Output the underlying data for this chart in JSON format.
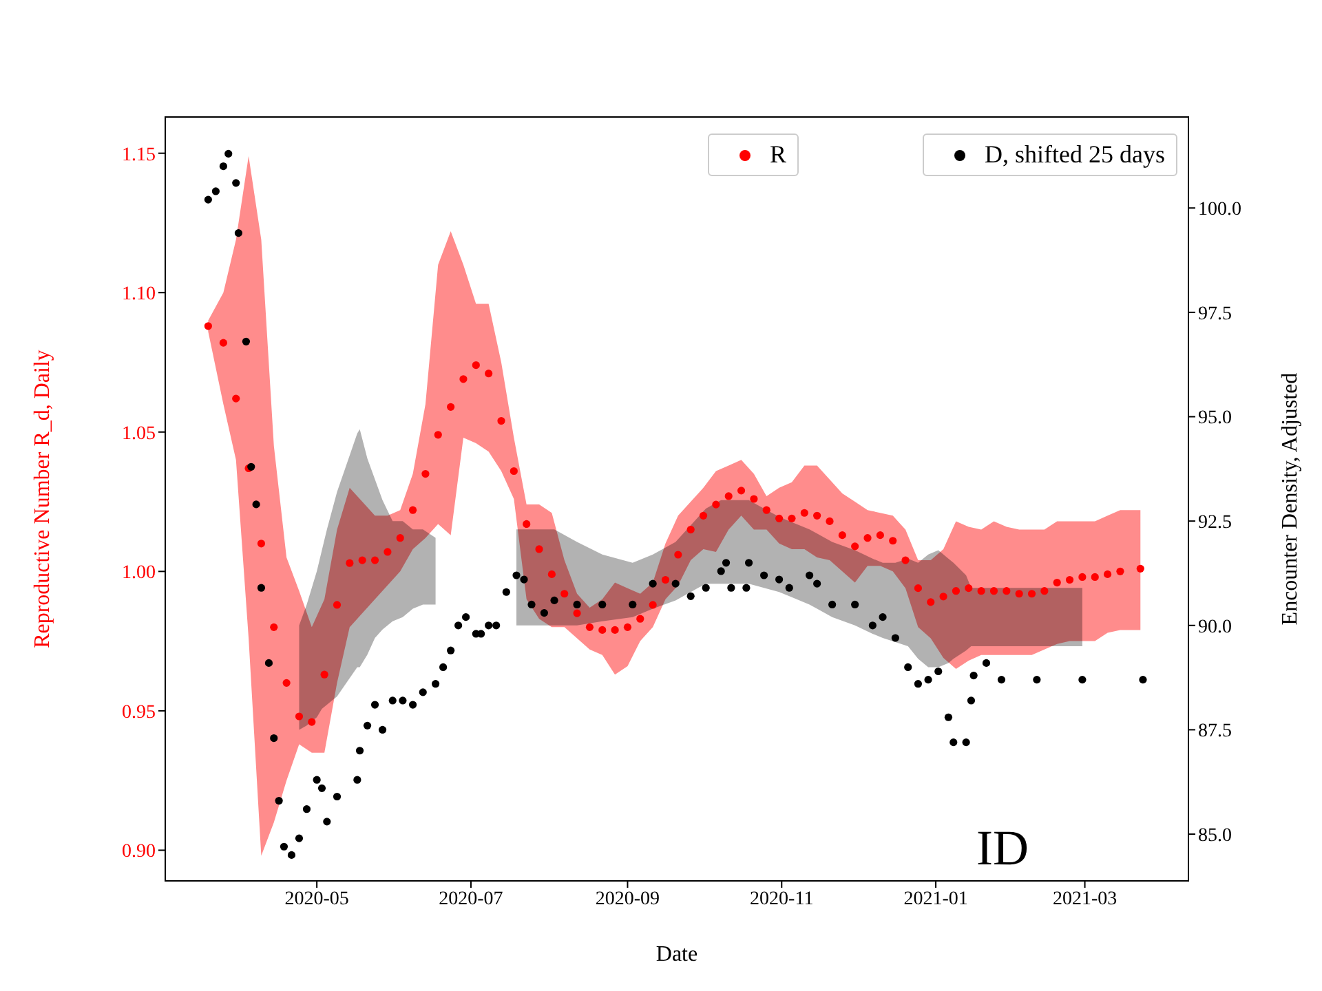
{
  "chart_data": {
    "type": "scatter",
    "xlabel": "Date",
    "ylabel": "Reproductive Number R_d, Daily",
    "y2label": "Encounter Density, Adjusted",
    "annotations": [
      "ID"
    ],
    "legend": "top right",
    "marker": "circle",
    "grid": false,
    "xlim": [
      "2020-03-02",
      "2021-04-11"
    ],
    "xticks": [
      "2020-05",
      "2020-07",
      "2020-09",
      "2020-11",
      "2021-01",
      "2021-03"
    ],
    "ylim": [
      0.889,
      1.163
    ],
    "yticks": [
      {
        "value": 0.9,
        "label": "0.90"
      },
      {
        "value": 0.95,
        "label": "0.95"
      },
      {
        "value": 1.0,
        "label": "1.00"
      },
      {
        "value": 1.05,
        "label": "1.05"
      },
      {
        "value": 1.1,
        "label": "1.10"
      },
      {
        "value": 1.15,
        "label": "1.15"
      }
    ],
    "y2lim": [
      83.88,
      102.18
    ],
    "y2ticks": [
      {
        "value": 85,
        "label": "85.0"
      },
      {
        "value": 87.5,
        "label": "87.5"
      },
      {
        "value": 90,
        "label": "90.0"
      },
      {
        "value": 92.5,
        "label": "92.5"
      },
      {
        "value": 95,
        "label": "95.0"
      },
      {
        "value": 97.5,
        "label": "97.5"
      },
      {
        "value": 100,
        "label": "100.0"
      }
    ],
    "series": [
      {
        "name": "R",
        "color": "#ff0000",
        "x": [
          "2020-03-19",
          "2020-03-25",
          "2020-03-30",
          "2020-04-04",
          "2020-04-09",
          "2020-04-14",
          "2020-04-19",
          "2020-04-24",
          "2020-04-29",
          "2020-05-04",
          "2020-05-09",
          "2020-05-14",
          "2020-05-19",
          "2020-05-24",
          "2020-05-29",
          "2020-06-03",
          "2020-06-08",
          "2020-06-13",
          "2020-06-18",
          "2020-06-23",
          "2020-06-28",
          "2020-07-03",
          "2020-07-08",
          "2020-07-13",
          "2020-07-18",
          "2020-07-23",
          "2020-07-28",
          "2020-08-02",
          "2020-08-07",
          "2020-08-12",
          "2020-08-17",
          "2020-08-22",
          "2020-08-27",
          "2020-09-01",
          "2020-09-06",
          "2020-09-11",
          "2020-09-16",
          "2020-09-21",
          "2020-09-26",
          "2020-10-01",
          "2020-10-06",
          "2020-10-11",
          "2020-10-16",
          "2020-10-21",
          "2020-10-26",
          "2020-10-31",
          "2020-11-05",
          "2020-11-10",
          "2020-11-15",
          "2020-11-20",
          "2020-11-25",
          "2020-11-30",
          "2020-12-05",
          "2020-12-10",
          "2020-12-15",
          "2020-12-20",
          "2020-12-25",
          "2020-12-30",
          "2021-01-04",
          "2021-01-09",
          "2021-01-14",
          "2021-01-19",
          "2021-01-24",
          "2021-01-29",
          "2021-02-03",
          "2021-02-08",
          "2021-02-13",
          "2021-02-18",
          "2021-02-23",
          "2021-02-28",
          "2021-03-05",
          "2021-03-10",
          "2021-03-15",
          "2021-03-23"
        ],
        "values": [
          1.088,
          1.082,
          1.062,
          1.037,
          1.01,
          0.98,
          0.96,
          0.948,
          0.946,
          0.963,
          0.988,
          1.003,
          1.004,
          1.004,
          1.007,
          1.012,
          1.022,
          1.035,
          1.049,
          1.059,
          1.069,
          1.074,
          1.071,
          1.054,
          1.036,
          1.017,
          1.008,
          0.999,
          0.992,
          0.985,
          0.98,
          0.979,
          0.979,
          0.98,
          0.983,
          0.988,
          0.997,
          1.006,
          1.015,
          1.02,
          1.024,
          1.027,
          1.029,
          1.026,
          1.022,
          1.019,
          1.019,
          1.021,
          1.02,
          1.018,
          1.013,
          1.009,
          1.012,
          1.013,
          1.011,
          1.004,
          0.994,
          0.989,
          0.991,
          0.993,
          0.994,
          0.993,
          0.993,
          0.993,
          0.992,
          0.992,
          0.993,
          0.996,
          0.997,
          0.998,
          0.998,
          0.999,
          1.0,
          1.001
        ],
        "upper": [
          1.09,
          1.1,
          1.119,
          1.149,
          1.119,
          1.045,
          1.005,
          0.993,
          0.98,
          0.99,
          1.015,
          1.03,
          1.025,
          1.02,
          1.02,
          1.022,
          1.035,
          1.06,
          1.11,
          1.122,
          1.11,
          1.096,
          1.096,
          1.075,
          1.048,
          1.024,
          1.024,
          1.021,
          1.004,
          0.992,
          0.987,
          0.99,
          0.996,
          0.994,
          0.992,
          0.996,
          1.01,
          1.02,
          1.025,
          1.03,
          1.036,
          1.038,
          1.04,
          1.035,
          1.027,
          1.03,
          1.032,
          1.038,
          1.038,
          1.033,
          1.028,
          1.025,
          1.022,
          1.021,
          1.02,
          1.015,
          1.004,
          1.004,
          1.008,
          1.018,
          1.016,
          1.015,
          1.018,
          1.016,
          1.015,
          1.015,
          1.015,
          1.018,
          1.018,
          1.018,
          1.018,
          1.02,
          1.022,
          1.022
        ],
        "lower": [
          1.086,
          1.06,
          1.04,
          0.976,
          0.898,
          0.91,
          0.925,
          0.938,
          0.935,
          0.935,
          0.96,
          0.98,
          0.985,
          0.99,
          0.995,
          1.0,
          1.008,
          1.012,
          1.017,
          1.013,
          1.048,
          1.046,
          1.043,
          1.036,
          1.026,
          0.99,
          0.983,
          0.98,
          0.98,
          0.976,
          0.972,
          0.97,
          0.963,
          0.966,
          0.975,
          0.98,
          0.99,
          0.995,
          1.004,
          1.008,
          1.007,
          1.015,
          1.02,
          1.015,
          1.015,
          1.01,
          1.008,
          1.008,
          1.005,
          1.004,
          1.0,
          0.996,
          1.002,
          1.002,
          1.0,
          0.994,
          0.98,
          0.976,
          0.969,
          0.965,
          0.968,
          0.97,
          0.97,
          0.97,
          0.97,
          0.97,
          0.972,
          0.974,
          0.975,
          0.975,
          0.975,
          0.978,
          0.979,
          0.979
        ]
      },
      {
        "name": "D, shifted 25 days",
        "color": "#000000",
        "axis": "y2",
        "x": [
          "2020-03-19",
          "2020-03-22",
          "2020-03-25",
          "2020-03-27",
          "2020-03-30",
          "2020-03-31",
          "2020-04-03",
          "2020-04-05",
          "2020-04-07",
          "2020-04-09",
          "2020-04-12",
          "2020-04-14",
          "2020-04-16",
          "2020-04-18",
          "2020-04-21",
          "2020-04-24",
          "2020-04-27",
          "2020-05-01",
          "2020-05-03",
          "2020-05-05",
          "2020-05-09",
          "2020-05-17",
          "2020-05-18",
          "2020-05-21",
          "2020-05-24",
          "2020-05-27",
          "2020-05-31",
          "2020-06-04",
          "2020-06-08",
          "2020-06-12",
          "2020-06-17",
          "2020-06-20",
          "2020-06-23",
          "2020-06-26",
          "2020-06-29",
          "2020-07-03",
          "2020-07-05",
          "2020-07-08",
          "2020-07-11",
          "2020-07-15",
          "2020-07-19",
          "2020-07-22",
          "2020-07-25",
          "2020-07-30",
          "2020-08-03",
          "2020-08-12",
          "2020-08-22",
          "2020-09-03",
          "2020-09-11",
          "2020-09-20",
          "2020-09-26",
          "2020-10-02",
          "2020-10-08",
          "2020-10-10",
          "2020-10-12",
          "2020-10-18",
          "2020-10-19",
          "2020-10-25",
          "2020-10-31",
          "2020-11-04",
          "2020-11-12",
          "2020-11-15",
          "2020-11-21",
          "2020-11-30",
          "2020-12-07",
          "2020-12-11",
          "2020-12-16",
          "2020-12-21",
          "2020-12-25",
          "2020-12-29",
          "2021-01-02",
          "2021-01-06",
          "2021-01-08",
          "2021-01-13",
          "2021-01-15",
          "2021-01-16",
          "2021-01-21",
          "2021-01-27",
          "2021-02-10",
          "2021-02-28",
          "2021-03-24"
        ],
        "values": [
          100.2,
          100.4,
          101.0,
          101.3,
          100.6,
          99.4,
          96.8,
          93.8,
          92.9,
          90.9,
          89.1,
          87.3,
          85.8,
          84.7,
          84.5,
          84.9,
          85.6,
          86.3,
          86.1,
          85.3,
          85.9,
          86.3,
          87.0,
          87.6,
          88.1,
          87.5,
          88.2,
          88.2,
          88.1,
          88.4,
          88.6,
          89.0,
          89.4,
          90.0,
          90.2,
          89.8,
          89.8,
          90.0,
          90.0,
          90.8,
          91.2,
          91.1,
          90.5,
          90.3,
          90.6,
          90.5,
          90.5,
          90.5,
          91.0,
          91.0,
          90.7,
          90.9,
          91.3,
          91.5,
          90.9,
          90.9,
          91.5,
          91.2,
          91.1,
          90.9,
          91.2,
          91.0,
          90.5,
          90.5,
          90.0,
          90.2,
          89.7,
          89.0,
          88.6,
          88.7,
          88.9,
          87.8,
          87.2,
          87.2,
          88.2,
          88.8,
          89.1,
          88.7,
          88.7,
          88.7,
          88.7
        ],
        "upper": [
          null,
          null,
          null,
          null,
          null,
          null,
          null,
          null,
          null,
          null,
          null,
          null,
          null,
          null,
          null,
          90.0,
          90.5,
          91.3,
          91.8,
          92.3,
          93.2,
          94.6,
          94.7,
          94.0,
          93.5,
          93.0,
          92.5,
          92.5,
          92.3,
          92.3,
          92.1,
          null,
          null,
          null,
          null,
          null,
          null,
          null,
          null,
          null,
          92.3,
          92.3,
          92.3,
          92.3,
          92.3,
          92.0,
          91.7,
          91.5,
          91.7,
          92.0,
          92.4,
          92.8,
          93.0,
          93.0,
          93.0,
          93.0,
          93.0,
          92.8,
          92.6,
          92.5,
          92.3,
          92.2,
          92.0,
          91.8,
          91.6,
          91.5,
          91.5,
          91.6,
          91.5,
          91.7,
          91.8,
          91.6,
          91.5,
          91.2,
          90.9,
          90.9,
          90.9,
          90.9,
          90.9,
          90.9,
          null
        ],
        "lower": [
          null,
          null,
          null,
          null,
          null,
          null,
          null,
          null,
          null,
          null,
          null,
          null,
          null,
          null,
          null,
          87.5,
          87.6,
          87.8,
          88.0,
          88.1,
          88.3,
          89.0,
          89.0,
          89.3,
          89.7,
          89.9,
          90.1,
          90.2,
          90.4,
          90.5,
          90.5,
          null,
          null,
          null,
          null,
          null,
          null,
          null,
          null,
          null,
          90.0,
          90.0,
          90.0,
          90.0,
          90.0,
          90.0,
          90.1,
          90.2,
          90.4,
          90.6,
          90.8,
          91.0,
          91.0,
          91.0,
          91.0,
          91.0,
          91.0,
          90.9,
          90.8,
          90.7,
          90.5,
          90.4,
          90.2,
          90.0,
          89.8,
          89.7,
          89.6,
          89.5,
          89.2,
          89.0,
          89.0,
          89.1,
          89.2,
          89.4,
          89.5,
          89.5,
          89.5,
          89.5,
          89.5,
          89.5,
          null
        ]
      }
    ]
  }
}
